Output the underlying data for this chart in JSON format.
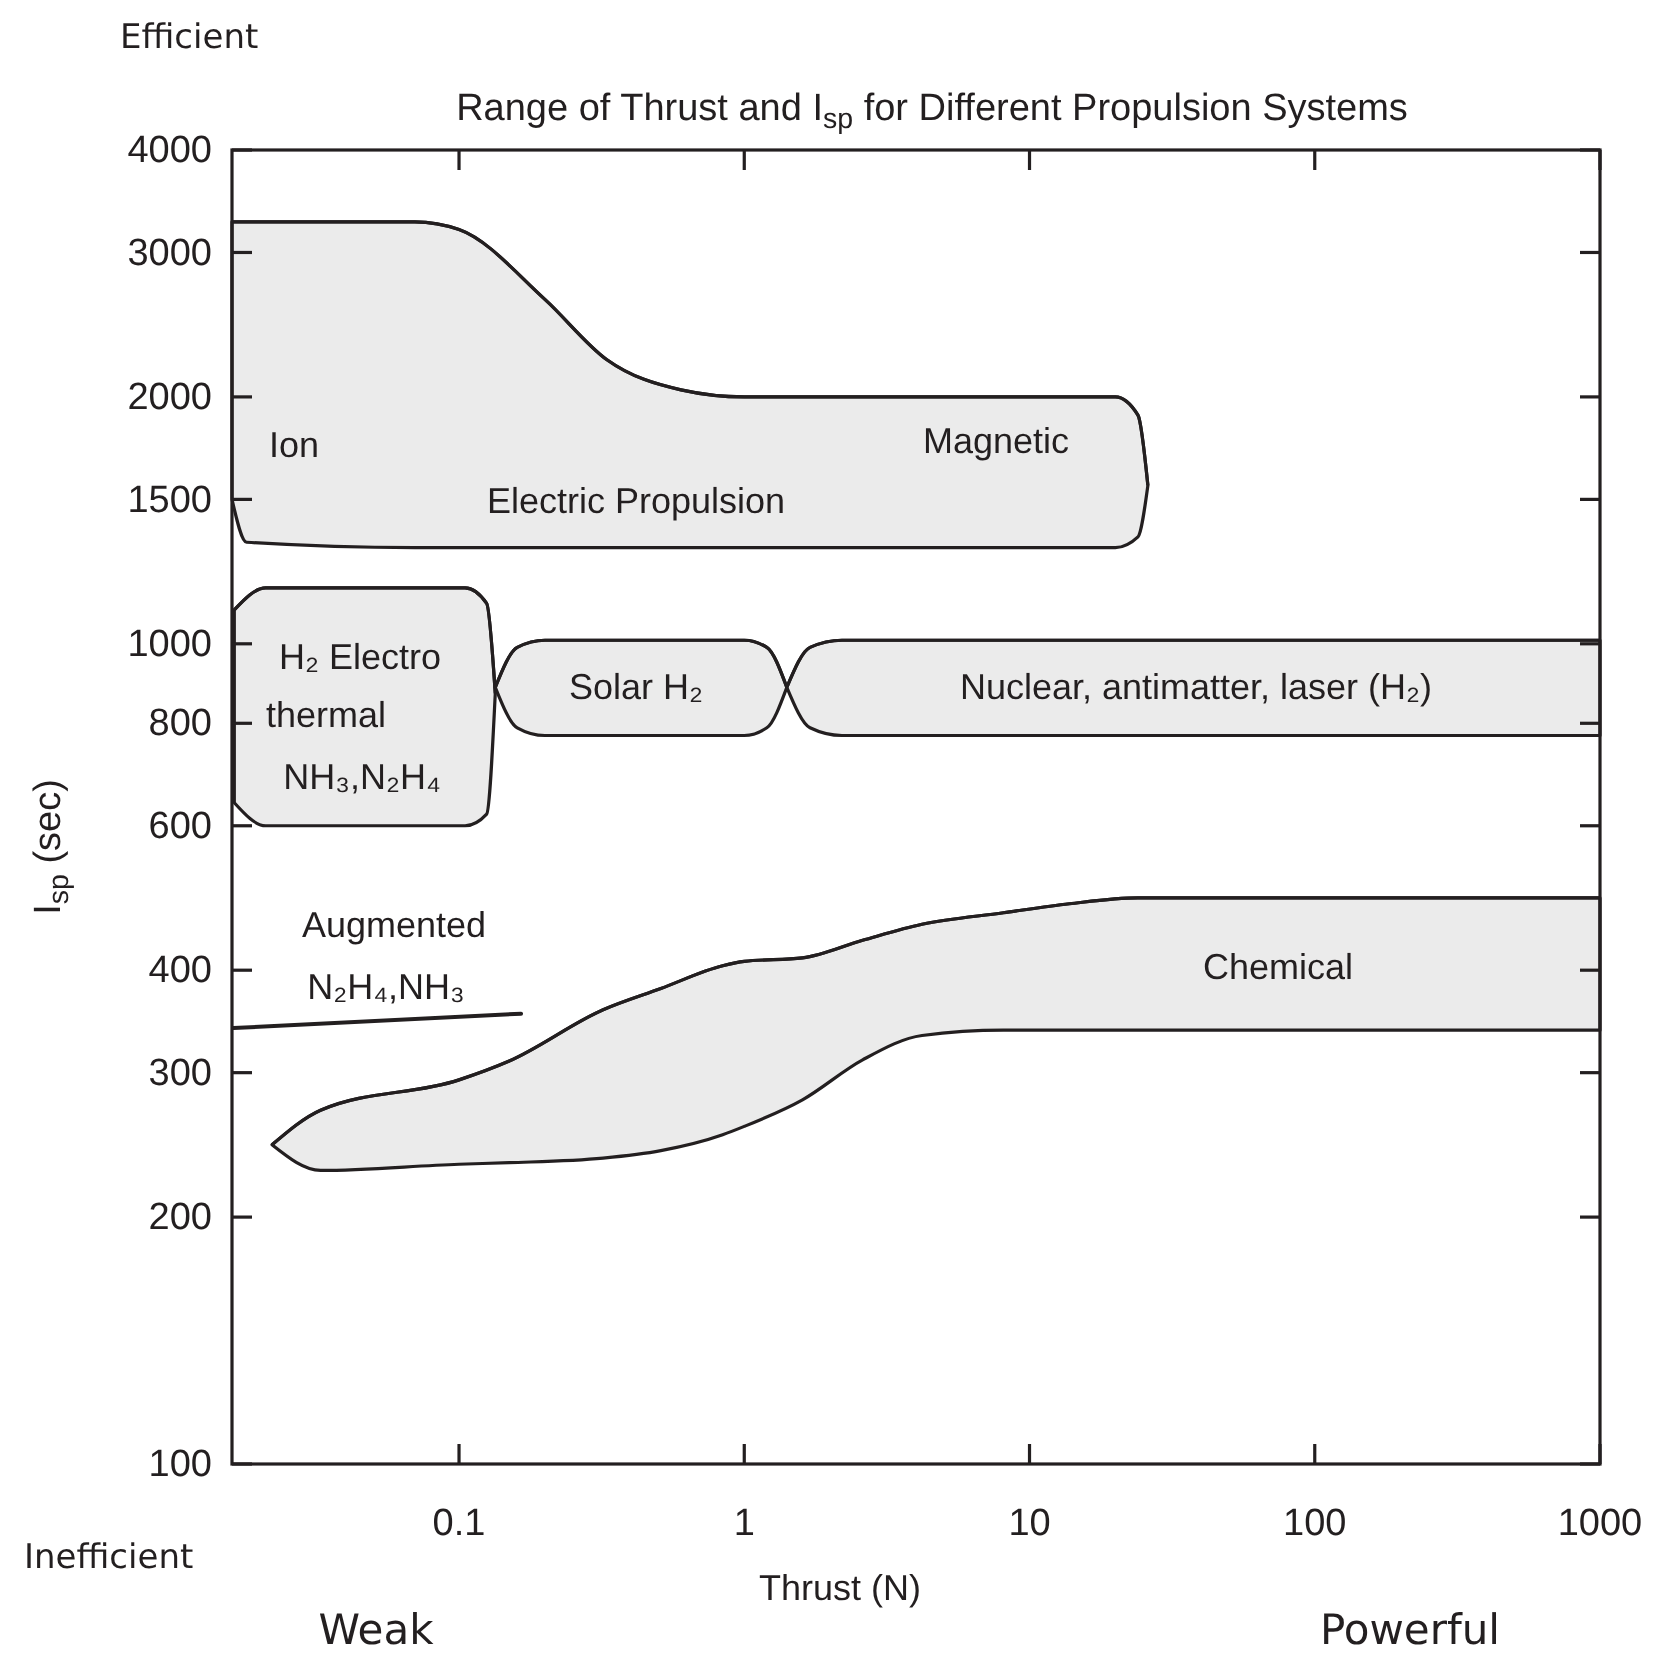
{
  "chart_data": {
    "type": "line",
    "title": "Range of Thrust and I$_{sp}$ for Different Propulsion Systems",
    "xlabel": "Thrust (N)",
    "ylabel": "I$_{sp}$ (sec)",
    "log": "xy",
    "xlim": [
      0.016,
      1000
    ],
    "ylim": [
      100,
      4000
    ],
    "xticks": [
      0.1,
      1,
      10,
      100,
      1000
    ],
    "yticks": [
      100,
      200,
      300,
      400,
      600,
      800,
      1000,
      1500,
      2000,
      3000,
      4000
    ],
    "series": [
      {
        "color": "#231f20",
        "x": [
          0.016,
          0.018,
          0.07,
          0.1,
          0.2,
          0.33,
          0.6,
          1,
          20,
          24,
          26
        ],
        "values": [
          3270,
          3270,
          3270,
          3200,
          2630,
          2220,
          2040,
          2000,
          2000,
          1900,
          1560
        ],
        "upper": [
          3270,
          3270,
          3270,
          3200,
          2630,
          2220,
          2040,
          2000,
          2000,
          1900,
          1560
        ],
        "lower": [
          1500,
          1330,
          1310,
          1310,
          1310,
          1310,
          1310,
          1310,
          1310,
          1350,
          1560
        ]
      },
      {
        "color": "#231f20",
        "x": [
          0.0163,
          0.021,
          0.105,
          0.125,
          0.134
        ],
        "values": [
          1100,
          1170,
          1170,
          1120,
          870
        ],
        "upper": [
          1100,
          1170,
          1170,
          1120,
          870
        ],
        "lower": [
          640,
          600,
          600,
          620,
          870
        ]
      },
      {
        "color": "#231f20",
        "x": [
          0.134,
          0.16,
          0.2,
          1.0,
          1.2,
          1.41
        ],
        "values": [
          885,
          990,
          1010,
          1010,
          990,
          885
        ],
        "upper": [
          885,
          990,
          1010,
          1010,
          990,
          885
        ],
        "lower": [
          885,
          790,
          773,
          773,
          790,
          885
        ]
      },
      {
        "color": "#231f20",
        "x": [
          1.41,
          1.7,
          2.2,
          1000
        ],
        "values": [
          885,
          990,
          1010,
          1010
        ],
        "upper": [
          885,
          990,
          1010,
          1010
        ],
        "lower": [
          885,
          790,
          773,
          773
        ]
      },
      {
        "color": "#231f20",
        "x": [
          0.0221,
          0.0327,
          0.1,
          0.15,
          0.32,
          0.51,
          0.84,
          1,
          1.6,
          2.6,
          4.2,
          8.1,
          13.8,
          24,
          1000
        ],
        "values": [
          245,
          270,
          294,
          310,
          358,
          380,
          405,
          410,
          414,
          435,
          455,
          470,
          482,
          490,
          490
        ],
        "upper": [
          245,
          270,
          294,
          310,
          358,
          380,
          405,
          410,
          414,
          435,
          455,
          470,
          482,
          490,
          490
        ],
        "lower": [
          245,
          228,
          232,
          233,
          236,
          241,
          252,
          258,
          278,
          311,
          333,
          338,
          338,
          338,
          338
        ]
      },
      {
        "type": "line",
        "color": "#231f20",
        "x": [
          0.0162,
          0.165
        ],
        "values": [
          340,
          354
        ]
      }
    ],
    "annotations": [
      "Efficient",
      "Inefficient",
      "Weak",
      "Powerful",
      "Ion",
      "Magnetic",
      "Electric Propulsion",
      "H₂ Electro",
      "thermal",
      "NH₃,N₂H₄",
      "Solar H₂",
      "Nuclear, antimatter, laser (H₂)",
      "Chemical",
      "Augmented",
      "N₂H₄,NH₃"
    ]
  }
}
